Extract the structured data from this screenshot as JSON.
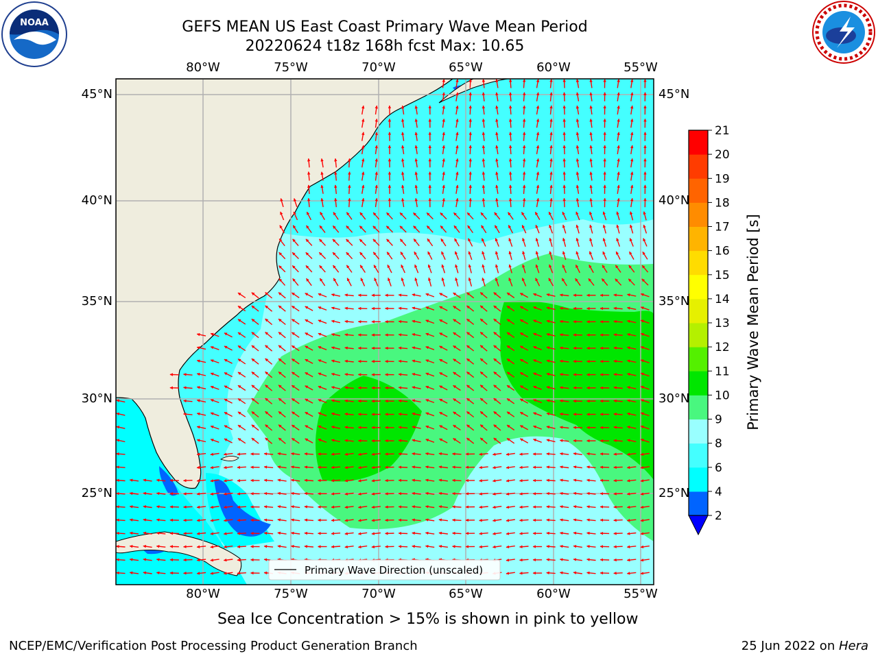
{
  "title": {
    "line1": "GEFS MEAN US East Coast Primary Wave Mean Period",
    "line2": "20220624 t18z 168h fcst   Max: 10.65"
  },
  "logos": {
    "noaa_text": "NOAA",
    "noaa_ring": "NATIONAL OCEANIC AND ATMOSPHERIC ADMINISTRATION · U.S. DEPARTMENT OF COMMERCE ·",
    "nws_ring": "NATIONAL WEATHER SERVICE"
  },
  "map": {
    "lon_labels": [
      "80°W",
      "75°W",
      "70°W",
      "65°W",
      "60°W",
      "55°W"
    ],
    "lat_labels": [
      "45°N",
      "40°N",
      "35°N",
      "30°N",
      "25°N"
    ],
    "legend_label": "Primary Wave Direction (unscaled)",
    "arrow_color": "#ff0000",
    "land_color": "#efedde",
    "grid_color": "#b0b0b0"
  },
  "colorbar": {
    "label": "Primary Wave Mean Period [s]",
    "ticks": [
      "2",
      "4",
      "6",
      "8",
      "9",
      "10",
      "11",
      "12",
      "13",
      "14",
      "15",
      "16",
      "17",
      "18",
      "19",
      "20",
      "21"
    ],
    "colors": [
      "#0000ff",
      "#0064ff",
      "#00ffff",
      "#44ffff",
      "#99ffff",
      "#49f77f",
      "#00e600",
      "#54f000",
      "#b4f000",
      "#e6f000",
      "#ffff00",
      "#ffdc00",
      "#ffb400",
      "#ff8c00",
      "#ff6400",
      "#ff3c00",
      "#ff0000"
    ],
    "under_color": "#0000ff"
  },
  "note": "Sea Ice Concentration > 15% is shown in pink to yellow",
  "footer": {
    "left": "NCEP/EMC/Verification Post Processing Product Generation Branch",
    "right_date": "25 Jun 2022 on ",
    "right_machine": "Hera"
  }
}
